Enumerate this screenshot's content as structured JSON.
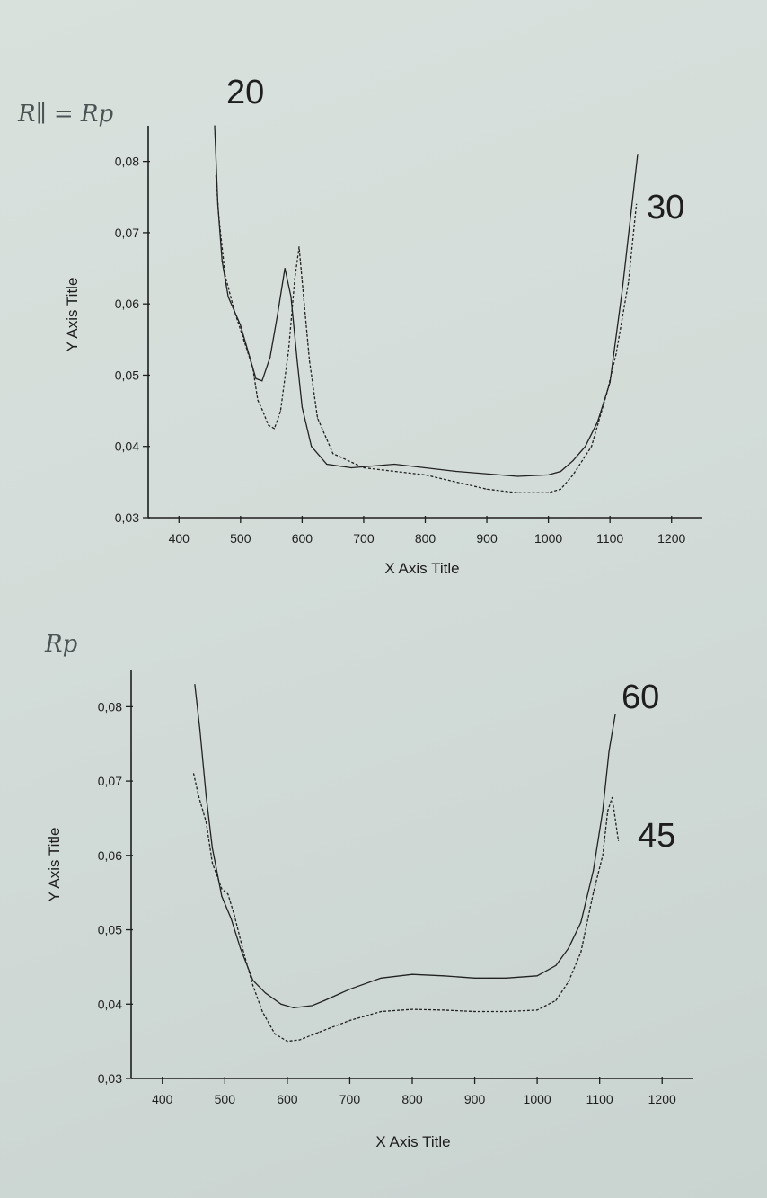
{
  "chart_data": [
    {
      "type": "line",
      "handwritten_label": "R∥ = Rp",
      "title": "",
      "xlabel": "X Axis Title",
      "ylabel": "Y Axis Title",
      "xlim": [
        350,
        1250
      ],
      "ylim": [
        0.03,
        0.085
      ],
      "x_ticks": [
        400,
        500,
        600,
        700,
        800,
        900,
        1000,
        1100,
        1200
      ],
      "y_ticks": [
        "0,03",
        "0,04",
        "0,05",
        "0,06",
        "0,07",
        "0,08"
      ],
      "y_tick_values": [
        0.03,
        0.04,
        0.05,
        0.06,
        0.07,
        0.08
      ],
      "grid": false,
      "series": [
        {
          "name": "20",
          "style": "dash-dot",
          "x": [
            458,
            463,
            470,
            480,
            500,
            515,
            525,
            535,
            548,
            560,
            572,
            582,
            592,
            600,
            615,
            640,
            680,
            750,
            850,
            950,
            1000,
            1020,
            1040,
            1060,
            1080,
            1100,
            1120,
            1145
          ],
          "y": [
            0.085,
            0.074,
            0.066,
            0.061,
            0.057,
            0.0525,
            0.0495,
            0.0492,
            0.0525,
            0.0585,
            0.065,
            0.061,
            0.052,
            0.0455,
            0.04,
            0.0375,
            0.037,
            0.0375,
            0.0365,
            0.0358,
            0.036,
            0.0365,
            0.038,
            0.04,
            0.0435,
            0.049,
            0.062,
            0.081
          ]
        },
        {
          "name": "30",
          "style": "dotted",
          "x": [
            460,
            465,
            475,
            490,
            505,
            520,
            528,
            535,
            545,
            555,
            565,
            578,
            588,
            595,
            603,
            612,
            625,
            650,
            700,
            800,
            900,
            950,
            1000,
            1020,
            1040,
            1070,
            1095,
            1110,
            1130,
            1143
          ],
          "y": [
            0.078,
            0.072,
            0.064,
            0.059,
            0.055,
            0.051,
            0.0465,
            0.0452,
            0.043,
            0.0425,
            0.045,
            0.0535,
            0.0635,
            0.068,
            0.0605,
            0.052,
            0.044,
            0.039,
            0.037,
            0.036,
            0.034,
            0.0335,
            0.0335,
            0.034,
            0.036,
            0.04,
            0.0475,
            0.053,
            0.063,
            0.074
          ]
        }
      ]
    },
    {
      "type": "line",
      "handwritten_label": "Rp",
      "title": "",
      "xlabel": "X Axis Title",
      "ylabel": "Y Axis Title",
      "xlim": [
        350,
        1250
      ],
      "ylim": [
        0.03,
        0.085
      ],
      "x_ticks": [
        400,
        500,
        600,
        700,
        800,
        900,
        1000,
        1100,
        1200
      ],
      "y_ticks": [
        "0,03",
        "0,04",
        "0,05",
        "0,06",
        "0,07",
        "0,08"
      ],
      "y_tick_values": [
        0.03,
        0.04,
        0.05,
        0.06,
        0.07,
        0.08
      ],
      "grid": false,
      "series": [
        {
          "name": "60",
          "style": "dash-dot",
          "x": [
            452,
            460,
            470,
            480,
            495,
            510,
            525,
            545,
            565,
            590,
            610,
            640,
            660,
            700,
            750,
            800,
            850,
            900,
            950,
            1000,
            1030,
            1050,
            1070,
            1090,
            1105,
            1115,
            1125
          ],
          "y": [
            0.083,
            0.077,
            0.068,
            0.061,
            0.0545,
            0.0515,
            0.0475,
            0.0432,
            0.0415,
            0.04,
            0.0395,
            0.0398,
            0.0405,
            0.042,
            0.0435,
            0.044,
            0.0438,
            0.0435,
            0.0435,
            0.0438,
            0.0452,
            0.0475,
            0.051,
            0.058,
            0.066,
            0.074,
            0.079
          ]
        },
        {
          "name": "45",
          "style": "dotted",
          "x": [
            450,
            458,
            470,
            480,
            495,
            505,
            515,
            530,
            545,
            560,
            580,
            600,
            620,
            650,
            700,
            750,
            800,
            850,
            900,
            950,
            1000,
            1030,
            1050,
            1070,
            1090,
            1105,
            1113,
            1120,
            1130
          ],
          "y": [
            0.071,
            0.068,
            0.0645,
            0.059,
            0.0555,
            0.0548,
            0.052,
            0.047,
            0.0425,
            0.039,
            0.036,
            0.035,
            0.0352,
            0.0362,
            0.0378,
            0.039,
            0.0393,
            0.0392,
            0.039,
            0.039,
            0.0392,
            0.0405,
            0.043,
            0.047,
            0.055,
            0.06,
            0.066,
            0.0678,
            0.062
          ]
        }
      ]
    }
  ]
}
